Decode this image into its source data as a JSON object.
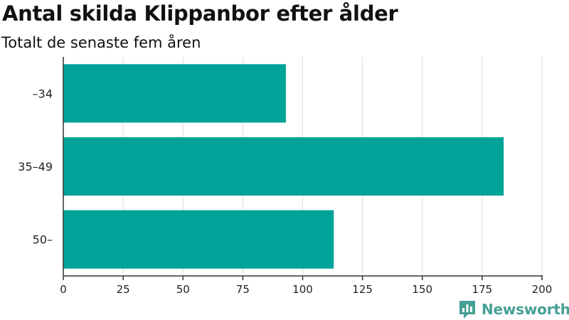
{
  "header": {
    "title": "Antal skilda Klippanbor efter ålder",
    "subtitle": "Totalt de senaste fem åren"
  },
  "brand": {
    "name": "Newsworthy",
    "icon": "newsworthy-logo-icon",
    "color": "#46a094"
  },
  "chart_data": {
    "type": "bar",
    "orientation": "horizontal",
    "title": "Antal skilda Klippanbor efter ålder",
    "subtitle": "Totalt de senaste fem åren",
    "categories": [
      "–34",
      "35–49",
      "50–"
    ],
    "values": [
      93,
      184,
      113
    ],
    "xlim": [
      0,
      200
    ],
    "xticks": [
      0,
      25,
      50,
      75,
      100,
      125,
      150,
      175,
      200
    ],
    "grid": true,
    "bar_color": "#00a398",
    "grid_color": "#dddddd",
    "axis_color": "#333333"
  }
}
